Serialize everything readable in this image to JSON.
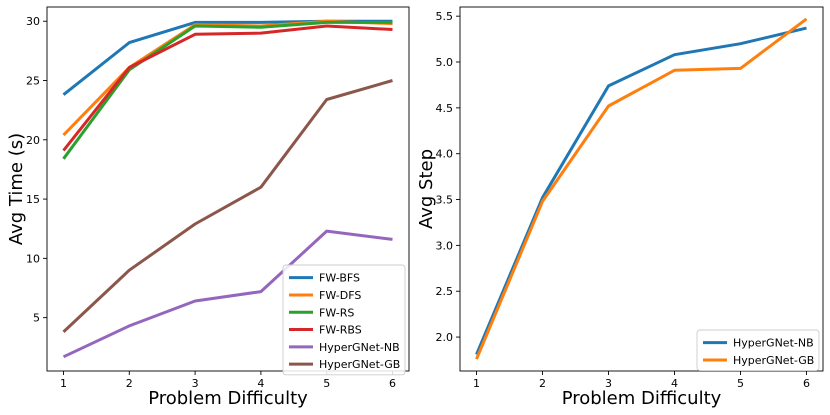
{
  "chart_data": [
    {
      "type": "line",
      "xlabel": "Problem Difficulty",
      "ylabel": "Avg Time (s)",
      "x": [
        1,
        2,
        3,
        4,
        5,
        6
      ],
      "xlim": [
        0.75,
        6.25
      ],
      "ylim": [
        0.5,
        31.2
      ],
      "xticks": [
        1,
        2,
        3,
        4,
        5,
        6
      ],
      "yticks": [
        5,
        10,
        15,
        20,
        25,
        30
      ],
      "ytick_labels": [
        "5",
        "10",
        "15",
        "20",
        "25",
        "30"
      ],
      "legend_position": "lower-right",
      "series": [
        {
          "name": "FW-BFS",
          "color": "#1f77b4",
          "values": [
            23.8,
            28.2,
            29.9,
            29.9,
            30.0,
            30.0
          ]
        },
        {
          "name": "FW-DFS",
          "color": "#ff7f0e",
          "values": [
            20.4,
            26.1,
            29.7,
            29.6,
            30.0,
            29.8
          ]
        },
        {
          "name": "FW-RS",
          "color": "#2ca02c",
          "values": [
            18.4,
            25.9,
            29.6,
            29.5,
            29.9,
            29.9
          ]
        },
        {
          "name": "FW-RBS",
          "color": "#d62728",
          "values": [
            19.1,
            26.1,
            28.9,
            29.0,
            29.6,
            29.3
          ]
        },
        {
          "name": "HyperGNet-NB",
          "color": "#9467bd",
          "values": [
            1.7,
            4.3,
            6.4,
            7.2,
            12.3,
            11.6
          ]
        },
        {
          "name": "HyperGNet-GB",
          "color": "#8c564b",
          "values": [
            3.8,
            9.0,
            12.9,
            16.0,
            23.4,
            25.0
          ]
        }
      ]
    },
    {
      "type": "line",
      "xlabel": "Problem Difficulty",
      "ylabel": "Avg Step",
      "x": [
        1,
        2,
        3,
        4,
        5,
        6
      ],
      "xlim": [
        0.75,
        6.25
      ],
      "ylim": [
        1.63,
        5.6
      ],
      "xticks": [
        1,
        2,
        3,
        4,
        5,
        6
      ],
      "yticks": [
        2.0,
        2.5,
        3.0,
        3.5,
        4.0,
        4.5,
        5.0,
        5.5
      ],
      "ytick_labels": [
        "2.0",
        "2.5",
        "3.0",
        "3.5",
        "4.0",
        "4.5",
        "5.0",
        "5.5"
      ],
      "legend_position": "lower-right",
      "series": [
        {
          "name": "HyperGNet-NB",
          "color": "#1f77b4",
          "values": [
            1.81,
            3.52,
            4.74,
            5.08,
            5.2,
            5.37
          ]
        },
        {
          "name": "HyperGNet-GB",
          "color": "#ff7f0e",
          "values": [
            1.76,
            3.48,
            4.52,
            4.91,
            4.93,
            5.47
          ]
        }
      ]
    }
  ]
}
